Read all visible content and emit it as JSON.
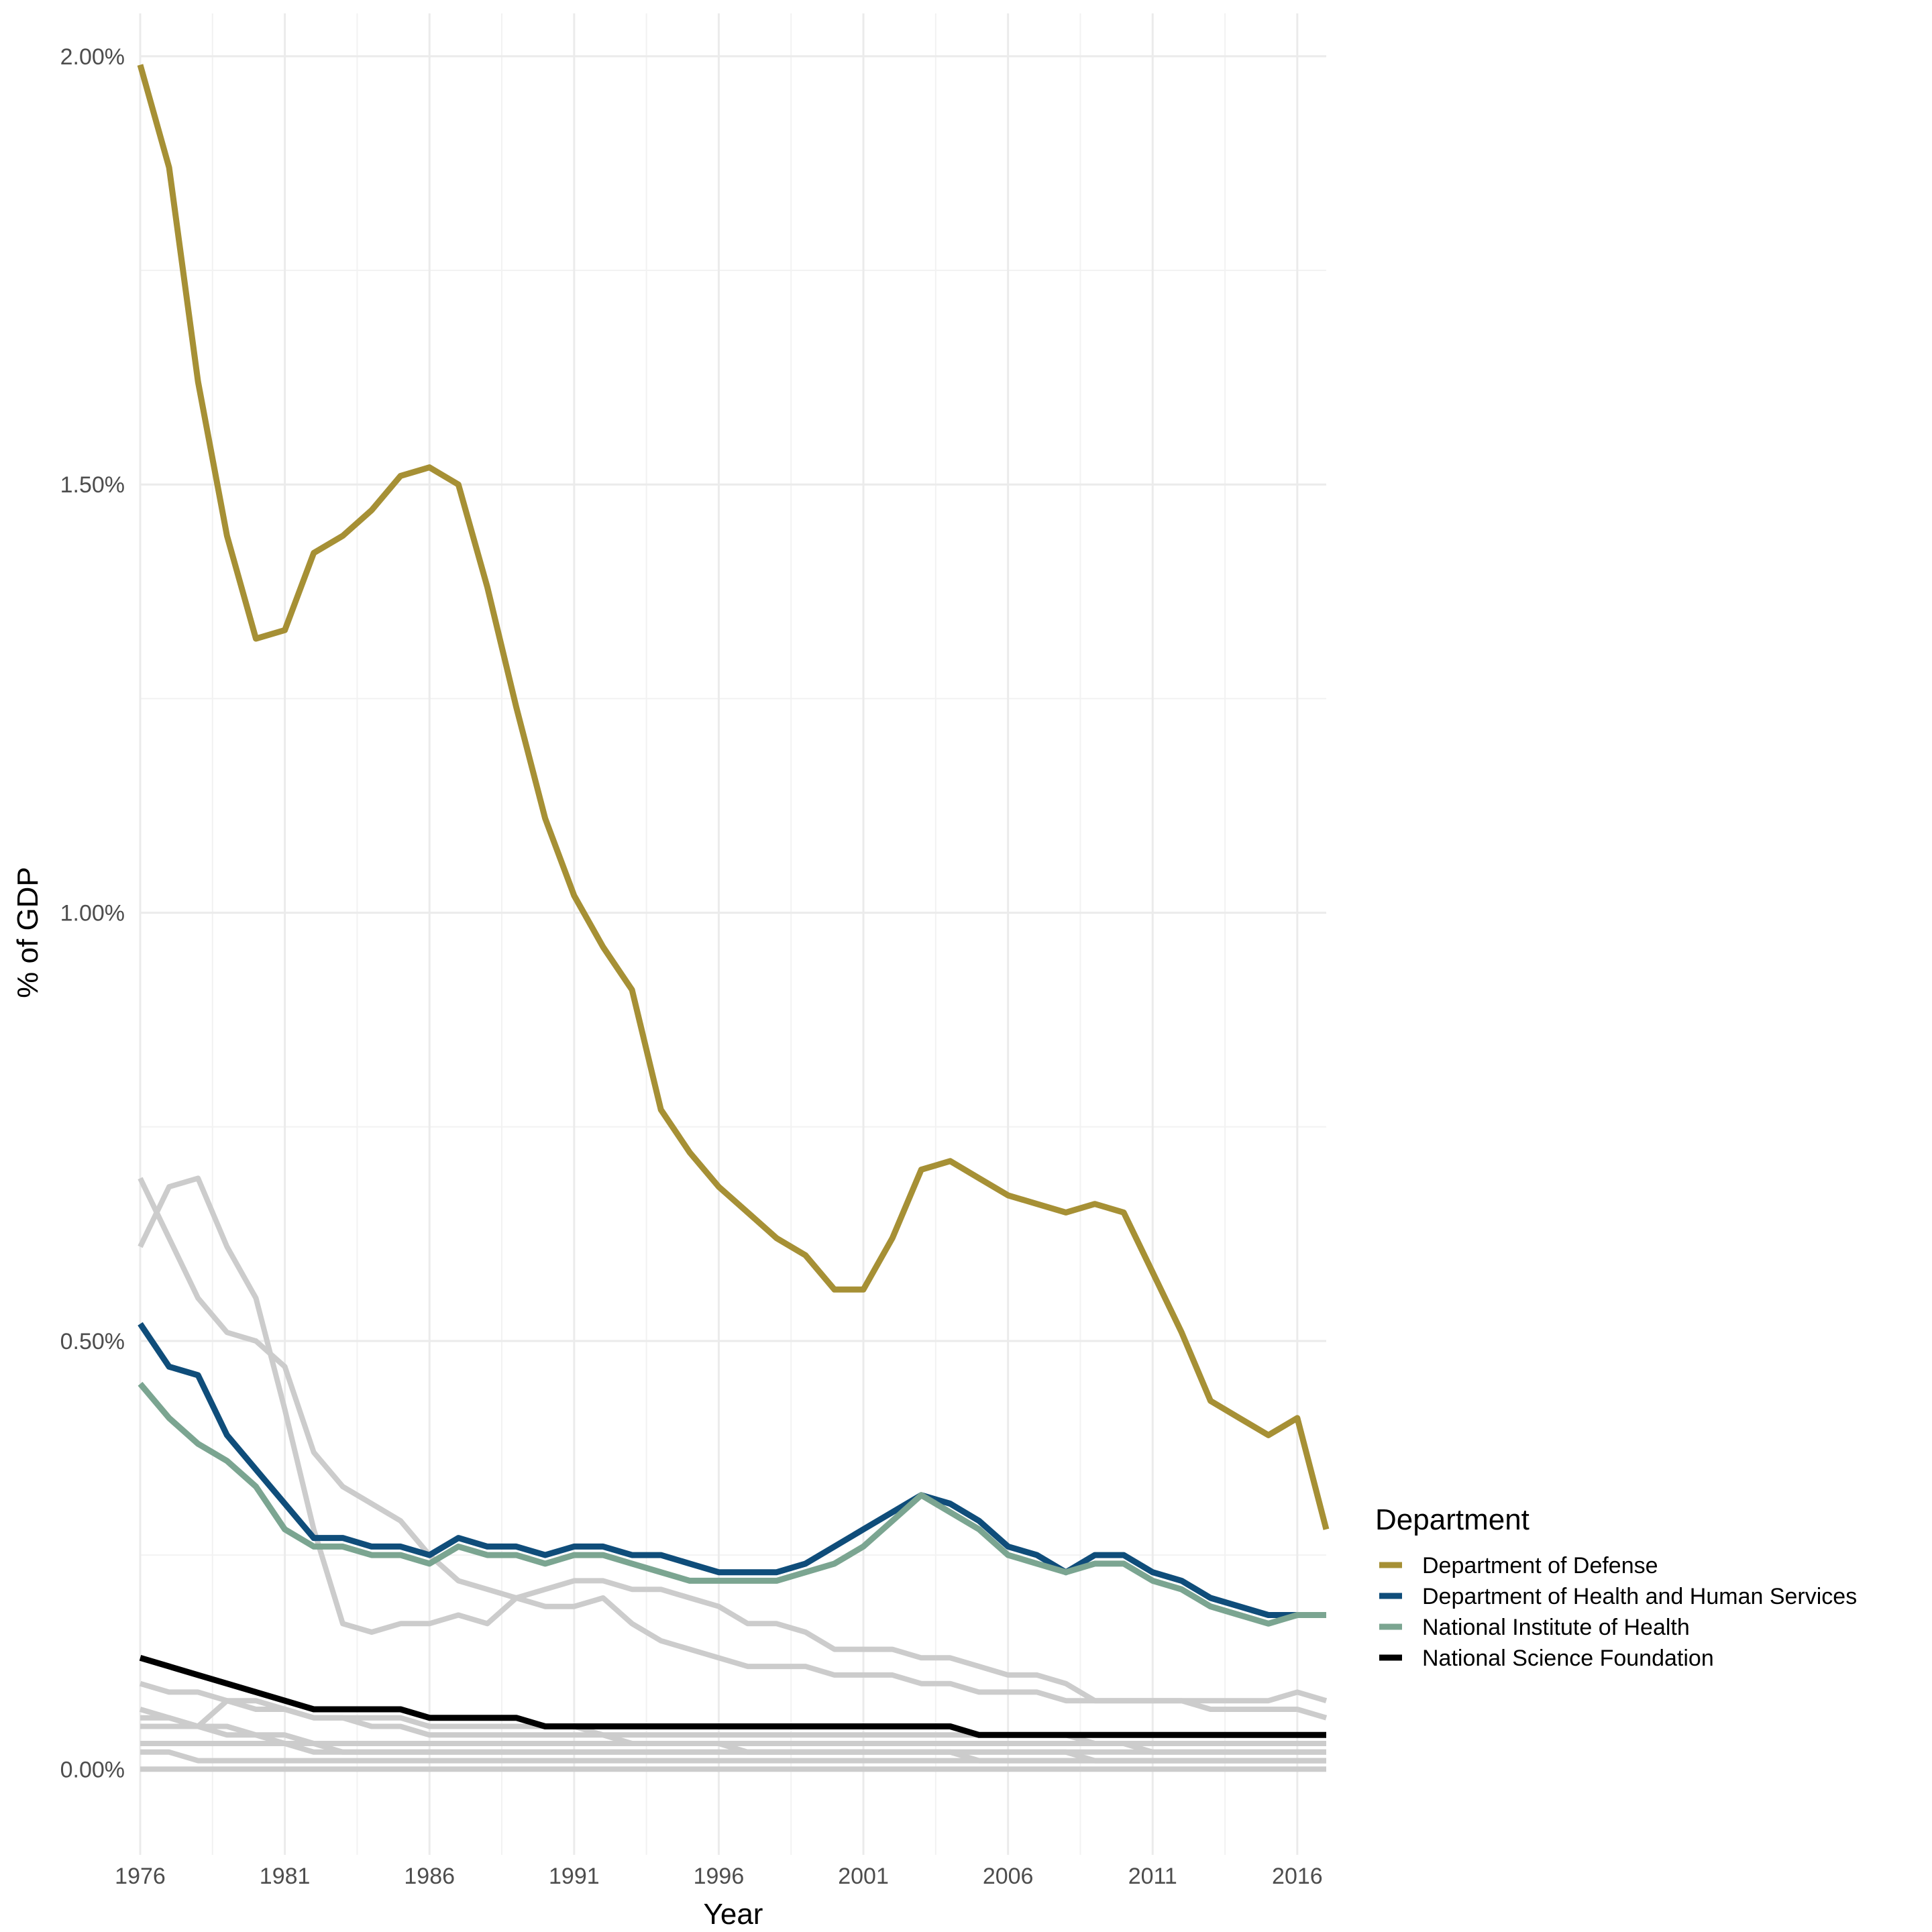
{
  "chart_data": {
    "type": "line",
    "xlabel": "Year",
    "ylabel": "% of GDP",
    "xlim": [
      1976,
      2017
    ],
    "ylim": [
      -0.1,
      2.05
    ],
    "x_ticks": [
      1976,
      1981,
      1986,
      1991,
      1996,
      2001,
      2006,
      2011,
      2016
    ],
    "y_ticks": [
      0,
      0.5,
      1.0,
      1.5,
      2.0
    ],
    "y_tick_labels": [
      "0.00%",
      "0.50%",
      "1.00%",
      "1.50%",
      "2.00%"
    ],
    "grid": true,
    "legend": {
      "title": "Department",
      "position": "right"
    },
    "x": [
      1976,
      1977,
      1978,
      1979,
      1980,
      1981,
      1982,
      1983,
      1984,
      1985,
      1986,
      1987,
      1988,
      1989,
      1990,
      1991,
      1992,
      1993,
      1994,
      1995,
      1996,
      1997,
      1998,
      1999,
      2000,
      2001,
      2002,
      2003,
      2004,
      2005,
      2006,
      2007,
      2008,
      2009,
      2010,
      2011,
      2012,
      2013,
      2014,
      2015,
      2016,
      2017
    ],
    "series": [
      {
        "name": "Department of Defense",
        "color": "#A69035",
        "values": [
          1.99,
          1.87,
          1.62,
          1.44,
          1.32,
          1.33,
          1.42,
          1.44,
          1.47,
          1.51,
          1.52,
          1.5,
          1.38,
          1.24,
          1.11,
          1.02,
          0.96,
          0.91,
          0.77,
          0.72,
          0.68,
          0.65,
          0.62,
          0.6,
          0.56,
          0.56,
          0.62,
          0.7,
          0.71,
          0.69,
          0.67,
          0.66,
          0.65,
          0.66,
          0.65,
          0.58,
          0.51,
          0.43,
          0.41,
          0.39,
          0.41,
          0.28
        ]
      },
      {
        "name": "Department of Health and Human Services",
        "color": "#0F4D7A",
        "values": [
          0.52,
          0.47,
          0.46,
          0.39,
          0.35,
          0.31,
          0.27,
          0.27,
          0.26,
          0.26,
          0.25,
          0.27,
          0.26,
          0.26,
          0.25,
          0.26,
          0.26,
          0.25,
          0.25,
          0.24,
          0.23,
          0.23,
          0.23,
          0.24,
          0.26,
          0.28,
          0.3,
          0.32,
          0.31,
          0.29,
          0.26,
          0.25,
          0.23,
          0.25,
          0.25,
          0.23,
          0.22,
          0.2,
          0.19,
          0.18,
          0.18,
          0.18
        ]
      },
      {
        "name": "National Institute of Health",
        "color": "#7BA591",
        "values": [
          0.45,
          0.41,
          0.38,
          0.36,
          0.33,
          0.28,
          0.26,
          0.26,
          0.25,
          0.25,
          0.24,
          0.26,
          0.25,
          0.25,
          0.24,
          0.25,
          0.25,
          0.24,
          0.23,
          0.22,
          0.22,
          0.22,
          0.22,
          0.23,
          0.24,
          0.26,
          0.29,
          0.32,
          0.3,
          0.28,
          0.25,
          0.24,
          0.23,
          0.24,
          0.24,
          0.22,
          0.21,
          0.19,
          0.18,
          0.17,
          0.18,
          0.18
        ]
      },
      {
        "name": "National Science Foundation",
        "color": "#000000",
        "values": [
          0.13,
          0.12,
          0.11,
          0.1,
          0.09,
          0.08,
          0.07,
          0.07,
          0.07,
          0.07,
          0.06,
          0.06,
          0.06,
          0.06,
          0.05,
          0.05,
          0.05,
          0.05,
          0.05,
          0.05,
          0.05,
          0.05,
          0.05,
          0.05,
          0.05,
          0.05,
          0.05,
          0.05,
          0.05,
          0.04,
          0.04,
          0.04,
          0.04,
          0.04,
          0.04,
          0.04,
          0.04,
          0.04,
          0.04,
          0.04,
          0.04,
          0.04
        ]
      }
    ],
    "background_series_color": "#CCCCCC",
    "background_series": [
      [
        0.69,
        0.62,
        0.55,
        0.51,
        0.5,
        0.47,
        0.37,
        0.33,
        0.31,
        0.29,
        0.25,
        0.22,
        0.21,
        0.2,
        0.19,
        0.19,
        0.2,
        0.17,
        0.15,
        0.14,
        0.13,
        0.12,
        0.12,
        0.12,
        0.11,
        0.11,
        0.11,
        0.1,
        0.1,
        0.09,
        0.09,
        0.09,
        0.08,
        0.08,
        0.08,
        0.08,
        0.08,
        0.07,
        0.07,
        0.07,
        0.07,
        0.06
      ],
      [
        0.61,
        0.68,
        0.69,
        0.61,
        0.55,
        0.42,
        0.28,
        0.17,
        0.16,
        0.17,
        0.17,
        0.18,
        0.17,
        0.2,
        0.21,
        0.22,
        0.22,
        0.21,
        0.21,
        0.2,
        0.19,
        0.17,
        0.17,
        0.16,
        0.14,
        0.14,
        0.14,
        0.13,
        0.13,
        0.12,
        0.11,
        0.11,
        0.1,
        0.08,
        0.08,
        0.08,
        0.08,
        0.08,
        0.08,
        0.08,
        0.09,
        0.08
      ],
      [
        0.1,
        0.09,
        0.09,
        0.08,
        0.07,
        0.07,
        0.06,
        0.06,
        0.06,
        0.06,
        0.05,
        0.05,
        0.05,
        0.05,
        0.05,
        0.05,
        0.04,
        0.04,
        0.04,
        0.04,
        0.04,
        0.04,
        0.04,
        0.04,
        0.04,
        0.04,
        0.04,
        0.04,
        0.04,
        0.04,
        0.04,
        0.04,
        0.04,
        0.03,
        0.03,
        0.03,
        0.03,
        0.03,
        0.03,
        0.03,
        0.03,
        0.03
      ],
      [
        0.07,
        0.06,
        0.05,
        0.05,
        0.04,
        0.04,
        0.03,
        0.03,
        0.03,
        0.03,
        0.03,
        0.03,
        0.03,
        0.03,
        0.03,
        0.03,
        0.03,
        0.03,
        0.03,
        0.03,
        0.03,
        0.02,
        0.02,
        0.02,
        0.02,
        0.02,
        0.02,
        0.02,
        0.02,
        0.02,
        0.02,
        0.02,
        0.02,
        0.02,
        0.02,
        0.02,
        0.02,
        0.02,
        0.02,
        0.02,
        0.02,
        0.02
      ],
      [
        0.06,
        0.06,
        0.05,
        0.08,
        0.08,
        0.07,
        0.06,
        0.06,
        0.05,
        0.05,
        0.04,
        0.04,
        0.04,
        0.04,
        0.04,
        0.04,
        0.04,
        0.03,
        0.03,
        0.03,
        0.03,
        0.03,
        0.03,
        0.03,
        0.03,
        0.03,
        0.03,
        0.03,
        0.03,
        0.03,
        0.03,
        0.03,
        0.03,
        0.03,
        0.03,
        0.02,
        0.02,
        0.02,
        0.02,
        0.02,
        0.02,
        0.02
      ],
      [
        0.05,
        0.05,
        0.05,
        0.04,
        0.04,
        0.03,
        0.03,
        0.02,
        0.02,
        0.02,
        0.02,
        0.02,
        0.02,
        0.02,
        0.02,
        0.02,
        0.02,
        0.02,
        0.02,
        0.02,
        0.02,
        0.02,
        0.02,
        0.02,
        0.02,
        0.02,
        0.02,
        0.02,
        0.02,
        0.02,
        0.02,
        0.02,
        0.02,
        0.01,
        0.01,
        0.01,
        0.01,
        0.01,
        0.01,
        0.01,
        0.01,
        0.01
      ],
      [
        0.03,
        0.03,
        0.03,
        0.03,
        0.03,
        0.03,
        0.02,
        0.02,
        0.02,
        0.02,
        0.02,
        0.02,
        0.02,
        0.02,
        0.02,
        0.02,
        0.02,
        0.02,
        0.02,
        0.02,
        0.02,
        0.02,
        0.02,
        0.02,
        0.02,
        0.02,
        0.02,
        0.02,
        0.02,
        0.01,
        0.01,
        0.01,
        0.01,
        0.01,
        0.01,
        0.01,
        0.01,
        0.01,
        0.01,
        0.01,
        0.01,
        0.01
      ],
      [
        0.02,
        0.02,
        0.01,
        0.01,
        0.01,
        0.01,
        0.01,
        0.01,
        0.01,
        0.01,
        0.01,
        0.01,
        0.01,
        0.01,
        0.01,
        0.01,
        0.01,
        0.01,
        0.01,
        0.01,
        0.01,
        0.01,
        0.01,
        0.01,
        0.01,
        0.01,
        0.01,
        0.01,
        0.01,
        0.01,
        0.01,
        0.01,
        0.01,
        0.01,
        0.01,
        0.01,
        0.01,
        0.01,
        0.01,
        0.01,
        0.01,
        0.01
      ],
      [
        0.0,
        0.0,
        0.0,
        0.0,
        0.0,
        0.0,
        0.0,
        0.0,
        0.0,
        0.0,
        0.0,
        0.0,
        0.0,
        0.0,
        0.0,
        0.0,
        0.0,
        0.0,
        0.0,
        0.0,
        0.0,
        0.0,
        0.0,
        0.0,
        0.0,
        0.0,
        0.0,
        0.0,
        0.0,
        0.0,
        0.0,
        0.0,
        0.0,
        0.0,
        0.0,
        0.0,
        0.0,
        0.0,
        0.0,
        0.0,
        0.0,
        0.0
      ]
    ]
  }
}
